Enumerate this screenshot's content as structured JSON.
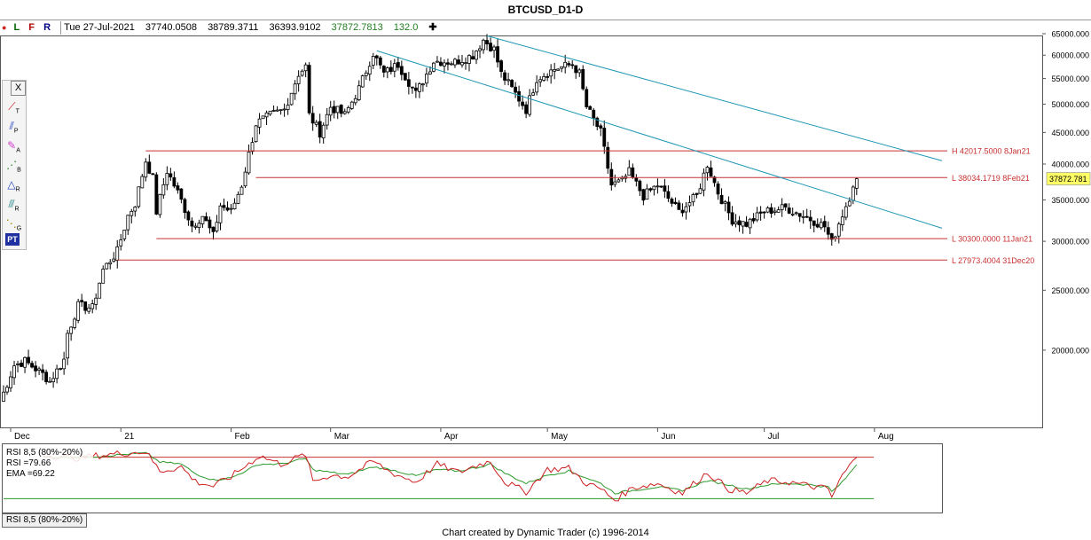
{
  "title": "BTCUSD_D1-D",
  "infobar": {
    "marker": "●",
    "letters": [
      "L",
      "F",
      "R"
    ],
    "date": "Tue 27-Jul-2021",
    "open": "37740.0508",
    "high": "38789.3711",
    "low": "36393.9102",
    "close": "37872.7813",
    "change": "132.0",
    "plus": "✚"
  },
  "toolbox": {
    "close_glyph": "X",
    "tools": [
      {
        "glyph": "⟋",
        "sub": "T",
        "icon": "trendline-icon"
      },
      {
        "glyph": "⫽",
        "sub": "P",
        "icon": "parallel-lines-icon"
      },
      {
        "glyph": "✎",
        "sub": "A",
        "icon": "andrews-pitchfork-icon"
      },
      {
        "glyph": "⋰",
        "sub": "B",
        "icon": "bars-icon"
      },
      {
        "glyph": "△",
        "sub": "R",
        "icon": "ratio-icon"
      },
      {
        "glyph": "⫻",
        "sub": "R",
        "icon": "retracement-icon"
      },
      {
        "glyph": "⋱",
        "sub": "G",
        "icon": "gann-icon"
      },
      {
        "glyph": "PT",
        "sub": "",
        "icon": "price-time-icon"
      }
    ]
  },
  "colors": {
    "up_candle": "#ffffff",
    "down_candle": "#000000",
    "level_line": "#c83232",
    "channel_line": "#1e96b4",
    "rsi_line": "#cc2020",
    "ema_line": "#2c9a2c",
    "last_price_box": "#ffff66"
  },
  "chart_data": [
    {
      "type": "candlestick",
      "title": "BTCUSD_D1-D",
      "y_scale": "log",
      "ylim": [
        15000,
        65000
      ],
      "y_ticks": [
        "65000.000",
        "60000.000",
        "55000.000",
        "50000.000",
        "45000.000",
        "40000.000",
        "35000.000",
        "30000.000",
        "25000.000",
        "20000.000"
      ],
      "x_labels": [
        "Dec",
        "21",
        "Feb",
        "Mar",
        "Apr",
        "May",
        "Jun",
        "Jul",
        "Aug"
      ],
      "x_label_dates": [
        "2020-12-01",
        "2021-01-01",
        "2021-02-01",
        "2021-03-01",
        "2021-04-01",
        "2021-05-01",
        "2021-06-01",
        "2021-07-01",
        "2021-08-01"
      ],
      "xlim": [
        "2020-11-28",
        "2021-08-20"
      ],
      "last_price": "37872.781",
      "price_path_points": [
        [
          "2020-11-28",
          16500
        ],
        [
          "2020-12-02",
          18900
        ],
        [
          "2020-12-05",
          19200
        ],
        [
          "2020-12-10",
          18300
        ],
        [
          "2020-12-12",
          17800
        ],
        [
          "2020-12-16",
          19300
        ],
        [
          "2020-12-17",
          21300
        ],
        [
          "2020-12-20",
          23600
        ],
        [
          "2020-12-24",
          23400
        ],
        [
          "2020-12-27",
          27000
        ],
        [
          "2020-12-31",
          28900
        ],
        [
          "2021-01-03",
          33000
        ],
        [
          "2021-01-05",
          34500
        ],
        [
          "2021-01-08",
          40500
        ],
        [
          "2021-01-10",
          38000
        ],
        [
          "2021-01-11",
          33500
        ],
        [
          "2021-01-14",
          39000
        ],
        [
          "2021-01-17",
          36000
        ],
        [
          "2021-01-21",
          31800
        ],
        [
          "2021-01-24",
          33000
        ],
        [
          "2021-01-27",
          30600
        ],
        [
          "2021-01-29",
          34300
        ],
        [
          "2021-02-01",
          33500
        ],
        [
          "2021-02-04",
          37000
        ],
        [
          "2021-02-08",
          46500
        ],
        [
          "2021-02-12",
          48000
        ],
        [
          "2021-02-16",
          49000
        ],
        [
          "2021-02-20",
          56000
        ],
        [
          "2021-02-22",
          57500
        ],
        [
          "2021-02-23",
          48000
        ],
        [
          "2021-02-26",
          45000
        ],
        [
          "2021-03-01",
          49500
        ],
        [
          "2021-03-05",
          48000
        ],
        [
          "2021-03-09",
          53000
        ],
        [
          "2021-03-13",
          60500
        ],
        [
          "2021-03-16",
          56000
        ],
        [
          "2021-03-20",
          58000
        ],
        [
          "2021-03-25",
          52000
        ],
        [
          "2021-03-30",
          58700
        ],
        [
          "2021-04-05",
          58500
        ],
        [
          "2021-04-10",
          60000
        ],
        [
          "2021-04-13",
          63500
        ],
        [
          "2021-04-16",
          61300
        ],
        [
          "2021-04-18",
          56000
        ],
        [
          "2021-04-22",
          52000
        ],
        [
          "2021-04-25",
          49000
        ],
        [
          "2021-04-28",
          55000
        ],
        [
          "2021-05-03",
          57000
        ],
        [
          "2021-05-08",
          58000
        ],
        [
          "2021-05-10",
          56000
        ],
        [
          "2021-05-12",
          49500
        ],
        [
          "2021-05-16",
          45000
        ],
        [
          "2021-05-19",
          37000
        ],
        [
          "2021-05-22",
          37500
        ],
        [
          "2021-05-24",
          38800
        ],
        [
          "2021-05-28",
          35500
        ],
        [
          "2021-06-01",
          37000
        ],
        [
          "2021-06-07",
          33500
        ],
        [
          "2021-06-12",
          35500
        ],
        [
          "2021-06-15",
          40000
        ],
        [
          "2021-06-18",
          36000
        ],
        [
          "2021-06-22",
          32500
        ],
        [
          "2021-06-26",
          32000
        ],
        [
          "2021-07-01",
          33500
        ],
        [
          "2021-07-07",
          34000
        ],
        [
          "2021-07-13",
          32800
        ],
        [
          "2021-07-18",
          31700
        ],
        [
          "2021-07-20",
          29800
        ],
        [
          "2021-07-22",
          32100
        ],
        [
          "2021-07-25",
          35400
        ],
        [
          "2021-07-26",
          37200
        ],
        [
          "2021-07-27",
          37872.78
        ]
      ],
      "levels": [
        {
          "label": "H 42017.5000  8Jan21",
          "value": 42017.5,
          "from": "2021-01-08"
        },
        {
          "label": "L 38034.1719  8Feb21",
          "value": 38034.1719,
          "from": "2021-02-08"
        },
        {
          "label": "L 30300.0000  11Jan21",
          "value": 30300.0,
          "from": "2021-01-11"
        },
        {
          "label": "L 27973.4004  31Dec20",
          "value": 27973.4004,
          "from": "2020-12-31"
        }
      ],
      "channel_lines": [
        {
          "from": [
            "2021-04-14",
            64500
          ],
          "to": [
            "2021-08-20",
            40500
          ]
        },
        {
          "from": [
            "2021-03-14",
            61000
          ],
          "to": [
            "2021-08-20",
            31500
          ]
        }
      ]
    },
    {
      "type": "line",
      "title": "RSI 8,5 (80%-20%)",
      "legend": [
        {
          "label": "RSI 8,5 (80%-20%)"
        },
        {
          "label": "RSI =",
          "value": "79.66"
        },
        {
          "label": "EMA =",
          "value": "69.22"
        }
      ],
      "ylim": [
        0,
        100
      ],
      "hlines": [
        80,
        20
      ],
      "series": [
        {
          "name": "RSI",
          "points": [
            [
              "2020-12-10",
              85
            ],
            [
              "2020-12-18",
              78
            ],
            [
              "2020-12-25",
              82
            ],
            [
              "2021-01-02",
              86
            ],
            [
              "2021-01-08",
              88
            ],
            [
              "2021-01-12",
              60
            ],
            [
              "2021-01-18",
              66
            ],
            [
              "2021-01-22",
              45
            ],
            [
              "2021-01-27",
              38
            ],
            [
              "2021-02-01",
              52
            ],
            [
              "2021-02-09",
              82
            ],
            [
              "2021-02-15",
              70
            ],
            [
              "2021-02-22",
              84
            ],
            [
              "2021-02-24",
              45
            ],
            [
              "2021-03-01",
              54
            ],
            [
              "2021-03-06",
              52
            ],
            [
              "2021-03-13",
              74
            ],
            [
              "2021-03-18",
              58
            ],
            [
              "2021-03-25",
              44
            ],
            [
              "2021-03-31",
              70
            ],
            [
              "2021-04-06",
              58
            ],
            [
              "2021-04-12",
              70
            ],
            [
              "2021-04-15",
              74
            ],
            [
              "2021-04-19",
              44
            ],
            [
              "2021-04-25",
              30
            ],
            [
              "2021-05-01",
              62
            ],
            [
              "2021-05-07",
              64
            ],
            [
              "2021-05-12",
              42
            ],
            [
              "2021-05-16",
              34
            ],
            [
              "2021-05-20",
              18
            ],
            [
              "2021-05-25",
              36
            ],
            [
              "2021-06-01",
              42
            ],
            [
              "2021-06-08",
              28
            ],
            [
              "2021-06-15",
              58
            ],
            [
              "2021-06-21",
              34
            ],
            [
              "2021-06-26",
              28
            ],
            [
              "2021-07-02",
              46
            ],
            [
              "2021-07-08",
              44
            ],
            [
              "2021-07-14",
              38
            ],
            [
              "2021-07-19",
              34
            ],
            [
              "2021-07-20",
              22
            ],
            [
              "2021-07-23",
              54
            ],
            [
              "2021-07-27",
              79.66
            ]
          ]
        },
        {
          "name": "EMA",
          "points": [
            [
              "2020-12-10",
              80
            ],
            [
              "2020-12-18",
              80
            ],
            [
              "2020-12-25",
              81
            ],
            [
              "2021-01-02",
              84
            ],
            [
              "2021-01-08",
              86
            ],
            [
              "2021-01-12",
              73
            ],
            [
              "2021-01-18",
              70
            ],
            [
              "2021-01-22",
              56
            ],
            [
              "2021-01-27",
              47
            ],
            [
              "2021-02-01",
              50
            ],
            [
              "2021-02-09",
              70
            ],
            [
              "2021-02-15",
              70
            ],
            [
              "2021-02-22",
              78
            ],
            [
              "2021-02-24",
              62
            ],
            [
              "2021-03-01",
              58
            ],
            [
              "2021-03-06",
              55
            ],
            [
              "2021-03-13",
              66
            ],
            [
              "2021-03-18",
              62
            ],
            [
              "2021-03-25",
              53
            ],
            [
              "2021-03-31",
              62
            ],
            [
              "2021-04-06",
              60
            ],
            [
              "2021-04-12",
              66
            ],
            [
              "2021-04-15",
              70
            ],
            [
              "2021-04-19",
              57
            ],
            [
              "2021-04-25",
              42
            ],
            [
              "2021-05-01",
              54
            ],
            [
              "2021-05-07",
              60
            ],
            [
              "2021-05-12",
              50
            ],
            [
              "2021-05-16",
              42
            ],
            [
              "2021-05-20",
              28
            ],
            [
              "2021-05-25",
              32
            ],
            [
              "2021-06-01",
              37
            ],
            [
              "2021-06-08",
              32
            ],
            [
              "2021-06-15",
              46
            ],
            [
              "2021-06-21",
              40
            ],
            [
              "2021-06-26",
              34
            ],
            [
              "2021-07-02",
              40
            ],
            [
              "2021-07-08",
              42
            ],
            [
              "2021-07-14",
              40
            ],
            [
              "2021-07-19",
              37
            ],
            [
              "2021-07-20",
              30
            ],
            [
              "2021-07-23",
              44
            ],
            [
              "2021-07-27",
              69.22
            ]
          ]
        }
      ]
    }
  ],
  "tab_label": "RSI 8,5 (80%-20%)",
  "footer": "Chart created by Dynamic Trader  (c) 1996-2014"
}
